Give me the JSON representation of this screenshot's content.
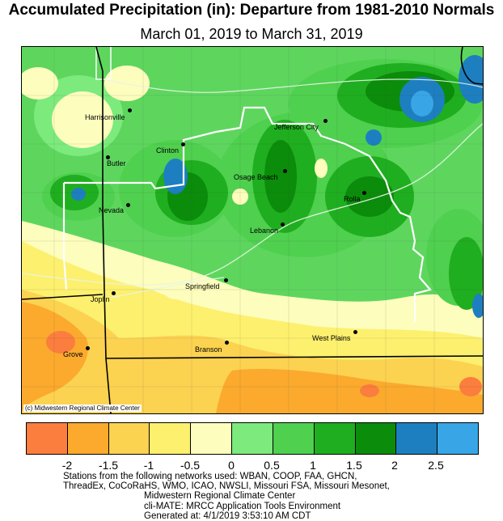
{
  "title": "Accumulated Precipitation (in): Departure from 1981-2010 Normals",
  "subtitle": "March 01, 2019 to March 31, 2019",
  "credit": "(c) Midwestern Regional Climate Center",
  "colors": {
    "background": "#5ed65e",
    "dark_green": "#0d9e14",
    "mid_green": "#2fbd2f",
    "blue": "#1a7fc7",
    "light_blue": "#3fa9e8",
    "state_line": "#000000",
    "region_line": "#ffffff"
  },
  "cities": [
    {
      "name": "Harrisonville"
    },
    {
      "name": "Jefferson City"
    },
    {
      "name": "Butler"
    },
    {
      "name": "Clinton"
    },
    {
      "name": "Osage Beach"
    },
    {
      "name": "Nevada"
    },
    {
      "name": "Rolla"
    },
    {
      "name": "Lebanon"
    },
    {
      "name": "Springfield"
    },
    {
      "name": "Joplin"
    },
    {
      "name": "West Plains"
    },
    {
      "name": "Branson"
    },
    {
      "name": "Grove"
    }
  ],
  "legend": {
    "colors": [
      "#fb7e3e",
      "#fbaa2e",
      "#fcd251",
      "#fcf06e",
      "#fdfdbd",
      "#7cea7c",
      "#4fd04f",
      "#1fae1f",
      "#0b8c0b",
      "#1e7fc0",
      "#38a6e6"
    ],
    "ticks": [
      "-2",
      "-1.5",
      "-1",
      "-0.5",
      "0",
      "0.5",
      "1",
      "1.5",
      "2",
      "2.5"
    ]
  },
  "notes": [
    "Stations from the following networks used: WBAN, COOP, FAA, GHCN,",
    "ThreadEx, CoCoRaHS, WMO, ICAO, NWSLI, Missouri FSA, Missouri Mesonet,",
    "Midwestern Regional Climate Center",
    "cli-MATE: MRCC Application Tools Environment",
    "Generated at: 4/1/2019 3:53:10 AM CDT"
  ]
}
